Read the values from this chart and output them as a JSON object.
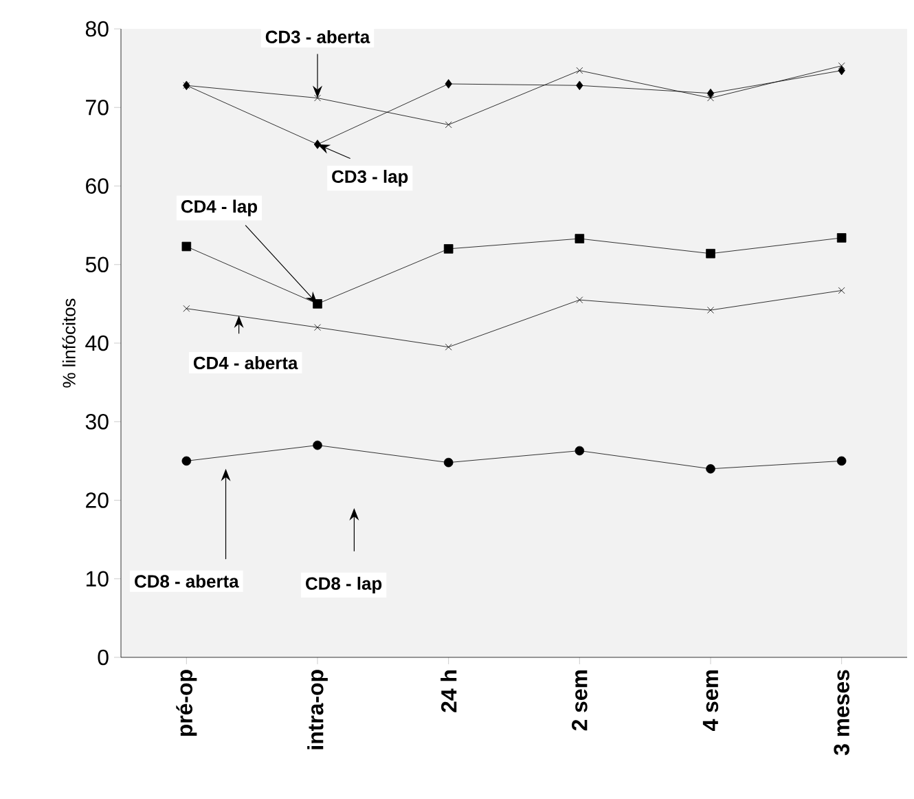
{
  "chart_data": {
    "type": "line",
    "ylabel": "% linfócitos",
    "categories": [
      "pré-op",
      "intra-op",
      "24 h",
      "2 sem",
      "4 sem",
      "3 meses"
    ],
    "ylim": [
      0,
      80
    ],
    "yticks": [
      0,
      10,
      20,
      30,
      40,
      50,
      60,
      70,
      80
    ],
    "grid": false,
    "series": [
      {
        "color": "#000000",
        "marker": "diamond",
        "values": [
          72.8,
          65.3,
          73,
          72.8,
          71.8,
          74.7
        ]
      },
      {
        "color": "#000000",
        "marker": "cross",
        "values": [
          72.8,
          71.2,
          67.8,
          74.7,
          71.2,
          75.3
        ]
      },
      {
        "color": "#000000",
        "marker": "square",
        "values": [
          52.3,
          45,
          52,
          53.3,
          51.4,
          53.4
        ]
      },
      {
        "color": "#000000",
        "marker": "cross",
        "values": [
          44.4,
          42,
          39.5,
          45.5,
          44.2,
          46.7
        ]
      },
      {
        "color": "#000000",
        "marker": "circle",
        "values": [
          25,
          27,
          24.8,
          26.3,
          24,
          25
        ]
      }
    ],
    "annotations": [
      {
        "text": "CD3 - aberta",
        "x": "intra-op",
        "y": 71.2
      },
      {
        "text": "CD3 - lap",
        "x": "intra-op",
        "y": 65.3
      },
      {
        "text": "CD4 - lap",
        "x": "intra-op",
        "y": 45
      },
      "CD4 - aberta",
      "CD8 - aberta",
      "CD8 - lap"
    ]
  }
}
